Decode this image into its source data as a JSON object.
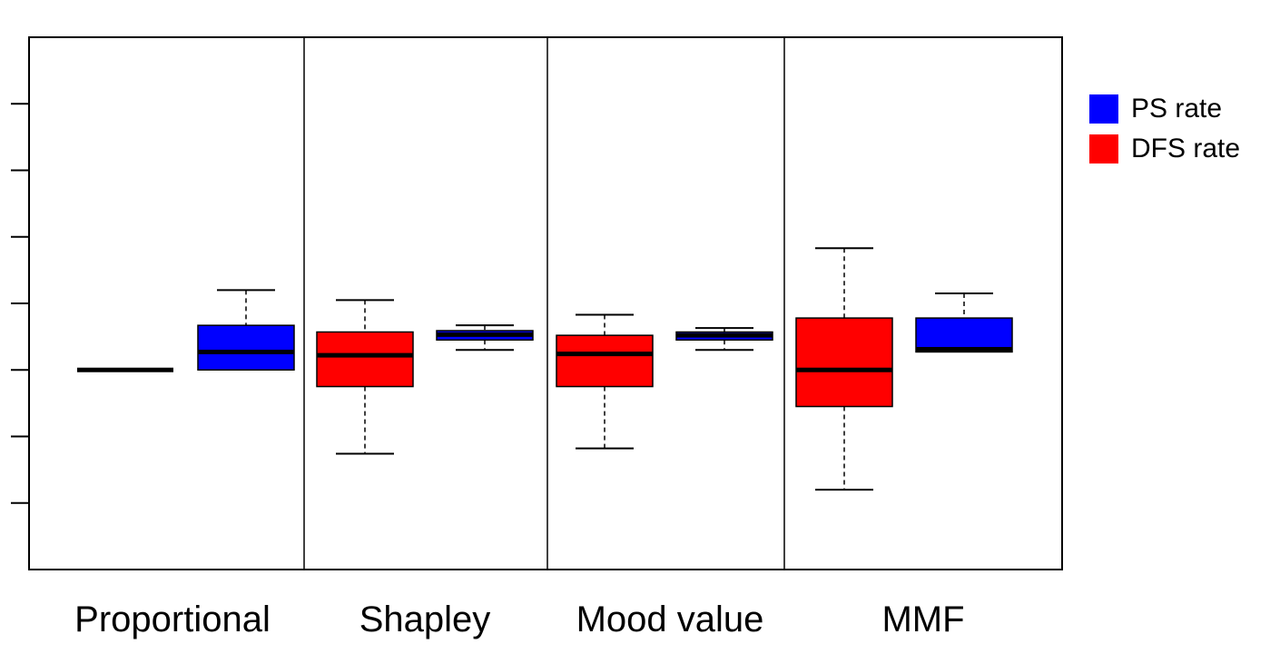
{
  "chart_data": {
    "type": "boxplot",
    "title": "",
    "xlabel": "",
    "ylabel": "",
    "ylim": [
      0,
      8
    ],
    "y_ticks": [
      1,
      2,
      3,
      4,
      5,
      6,
      7
    ],
    "y_tick_labels": [
      "",
      "",
      "",
      "",
      "",
      "",
      ""
    ],
    "grid": false,
    "legend_position": "top-right, outside plot",
    "groups": [
      "Proportional",
      "Shapley",
      "Mood value",
      "MMF"
    ],
    "series": [
      {
        "name": "PS rate",
        "color": "#0000ff",
        "boxes": [
          {
            "group": "Proportional",
            "min": 3.0,
            "q1": 3.0,
            "median": 3.27,
            "q3": 3.67,
            "max": 4.2
          },
          {
            "group": "Shapley",
            "min": 3.3,
            "q1": 3.45,
            "median": 3.53,
            "q3": 3.59,
            "max": 3.67
          },
          {
            "group": "Mood value",
            "min": 3.3,
            "q1": 3.45,
            "median": 3.52,
            "q3": 3.57,
            "max": 3.63
          },
          {
            "group": "MMF",
            "min": 3.27,
            "q1": 3.27,
            "median": 3.31,
            "q3": 3.78,
            "max": 4.15
          }
        ]
      },
      {
        "name": "DFS rate",
        "color": "#ff0000",
        "boxes": [
          {
            "group": "Proportional",
            "min": 3.0,
            "q1": 3.0,
            "median": 3.0,
            "q3": 3.0,
            "max": 3.0
          },
          {
            "group": "Shapley",
            "min": 1.74,
            "q1": 2.75,
            "median": 3.22,
            "q3": 3.57,
            "max": 4.05
          },
          {
            "group": "Mood value",
            "min": 1.82,
            "q1": 2.75,
            "median": 3.24,
            "q3": 3.52,
            "max": 3.83
          },
          {
            "group": "MMF",
            "min": 1.2,
            "q1": 2.45,
            "median": 3.0,
            "q3": 3.78,
            "max": 4.83
          }
        ]
      }
    ]
  }
}
